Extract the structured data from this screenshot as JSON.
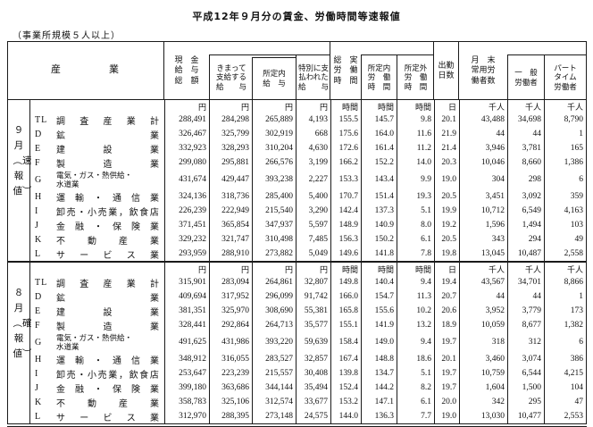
{
  "title": "平成12年９月分の賃金、労働時間等速報値",
  "subtitle": "（事業所規模５人以上）",
  "header": {
    "industry": "産　　　　業",
    "cols": {
      "genkin": [
        "現　金",
        "給　与",
        "総　額"
      ],
      "kimatte": [
        "きまって",
        "支給する",
        "給　　与"
      ],
      "shoteinai_kyuyo": [
        "所定内",
        "給　与"
      ],
      "tokubetsu": [
        "特別に支",
        "払われた",
        "給　　与"
      ],
      "sojitsu": [
        "総　実",
        "労　働",
        "時　間"
      ],
      "shoteinai_rodo": [
        "所定内",
        "労　働",
        "時　間"
      ],
      "shoteigai_rodo": [
        "所定外",
        "労　働",
        "時　間"
      ],
      "shukkin": [
        "出勤",
        "日数"
      ],
      "getsumatsu": [
        "月　末",
        "常用労",
        "働者数"
      ],
      "ippan": [
        "一　般",
        "労働者"
      ],
      "part": [
        "パート",
        "タイム",
        "労働者"
      ]
    }
  },
  "units": [
    "円",
    "円",
    "円",
    "円",
    "時間",
    "時間",
    "時間",
    "日",
    "千人",
    "千人",
    "千人"
  ],
  "sections": [
    {
      "period_label": "９月︵速報値︶",
      "rows": [
        {
          "code": "TL",
          "name": "調査産業計",
          "values": [
            "288,491",
            "284,298",
            "265,889",
            "4,193",
            "155.5",
            "145.7",
            "9.8",
            "20.1",
            "43,488",
            "34,698",
            "8,790"
          ]
        },
        {
          "code": "D",
          "name": "鉱業",
          "values": [
            "326,467",
            "325,799",
            "302,919",
            "668",
            "175.6",
            "164.0",
            "11.6",
            "21.9",
            "44",
            "44",
            "1"
          ]
        },
        {
          "code": "E",
          "name": "建設業",
          "values": [
            "332,923",
            "328,293",
            "310,204",
            "4,630",
            "172.6",
            "161.4",
            "11.2",
            "21.4",
            "3,946",
            "3,781",
            "165"
          ]
        },
        {
          "code": "F",
          "name": "製造業",
          "values": [
            "299,080",
            "295,881",
            "266,576",
            "3,199",
            "166.2",
            "152.2",
            "14.0",
            "20.3",
            "10,046",
            "8,660",
            "1,386"
          ]
        },
        {
          "code": "G",
          "name": "電気・ガス・熱供給・\n水道業",
          "values": [
            "431,674",
            "429,447",
            "393,238",
            "2,227",
            "153.3",
            "143.4",
            "9.9",
            "19.0",
            "304",
            "298",
            "6"
          ]
        },
        {
          "code": "H",
          "name": "運輸・通信業",
          "values": [
            "324,136",
            "318,736",
            "285,400",
            "5,400",
            "170.7",
            "151.4",
            "19.3",
            "20.5",
            "3,451",
            "3,092",
            "359"
          ]
        },
        {
          "code": "I",
          "name": "卸売・小売業，飲食店",
          "values": [
            "226,239",
            "222,949",
            "215,540",
            "3,290",
            "142.4",
            "137.3",
            "5.1",
            "19.9",
            "10,712",
            "6,549",
            "4,163"
          ]
        },
        {
          "code": "J",
          "name": "金融・保険業",
          "values": [
            "371,451",
            "365,854",
            "347,937",
            "5,597",
            "148.9",
            "140.9",
            "8.0",
            "19.2",
            "1,596",
            "1,494",
            "103"
          ]
        },
        {
          "code": "K",
          "name": "不動産業",
          "values": [
            "329,232",
            "321,747",
            "310,498",
            "7,485",
            "156.3",
            "150.2",
            "6.1",
            "20.5",
            "343",
            "294",
            "49"
          ]
        },
        {
          "code": "L",
          "name": "サービス業",
          "values": [
            "293,959",
            "288,910",
            "273,882",
            "5,049",
            "149.6",
            "141.8",
            "7.8",
            "19.8",
            "13,045",
            "10,487",
            "2,558"
          ]
        }
      ]
    },
    {
      "period_label": "８月︵確報値︶",
      "rows": [
        {
          "code": "TL",
          "name": "調査産業計",
          "values": [
            "315,901",
            "283,094",
            "264,861",
            "32,807",
            "149.8",
            "140.4",
            "9.4",
            "19.4",
            "43,567",
            "34,701",
            "8,866"
          ]
        },
        {
          "code": "D",
          "name": "鉱業",
          "values": [
            "409,694",
            "317,952",
            "296,099",
            "91,742",
            "166.0",
            "154.7",
            "11.3",
            "20.7",
            "44",
            "44",
            "1"
          ]
        },
        {
          "code": "E",
          "name": "建設業",
          "values": [
            "381,351",
            "325,970",
            "308,690",
            "55,381",
            "165.8",
            "155.6",
            "10.2",
            "20.6",
            "3,952",
            "3,779",
            "173"
          ]
        },
        {
          "code": "F",
          "name": "製造業",
          "values": [
            "328,441",
            "292,864",
            "264,713",
            "35,577",
            "155.1",
            "141.9",
            "13.2",
            "18.9",
            "10,059",
            "8,677",
            "1,382"
          ]
        },
        {
          "code": "G",
          "name": "電気・ガス・熱供給・\n水道業",
          "values": [
            "491,625",
            "431,986",
            "393,220",
            "59,639",
            "158.4",
            "149.0",
            "9.4",
            "19.7",
            "318",
            "312",
            "6"
          ]
        },
        {
          "code": "H",
          "name": "運輸・通信業",
          "values": [
            "348,912",
            "316,055",
            "283,527",
            "32,857",
            "167.4",
            "148.8",
            "18.6",
            "20.1",
            "3,460",
            "3,074",
            "386"
          ]
        },
        {
          "code": "I",
          "name": "卸売・小売業，飲食店",
          "values": [
            "253,647",
            "223,239",
            "215,557",
            "30,408",
            "139.8",
            "134.7",
            "5.1",
            "19.7",
            "10,759",
            "6,544",
            "4,215"
          ]
        },
        {
          "code": "J",
          "name": "金融・保険業",
          "values": [
            "399,180",
            "363,686",
            "344,144",
            "35,494",
            "152.4",
            "144.2",
            "8.2",
            "19.7",
            "1,604",
            "1,500",
            "104"
          ]
        },
        {
          "code": "K",
          "name": "不動産業",
          "values": [
            "358,783",
            "325,106",
            "312,574",
            "33,677",
            "153.2",
            "147.1",
            "6.1",
            "20.0",
            "342",
            "295",
            "47"
          ]
        },
        {
          "code": "L",
          "name": "サービス業",
          "values": [
            "312,970",
            "288,395",
            "273,148",
            "24,575",
            "144.0",
            "136.3",
            "7.7",
            "19.0",
            "13,030",
            "10,477",
            "2,553"
          ]
        }
      ]
    }
  ]
}
